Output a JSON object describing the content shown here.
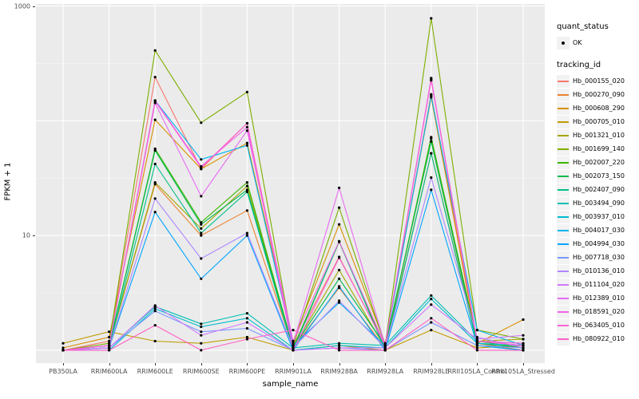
{
  "figure": {
    "y_axis": {
      "label": "FPKM + 1",
      "ticks": [
        {
          "value": 10,
          "label": "10"
        },
        {
          "value": 1000,
          "label": "1000"
        }
      ]
    },
    "x_axis": {
      "label": "sample_name"
    },
    "legend": {
      "quant_status_title": "quant_status",
      "quant_status_items": [
        "OK"
      ],
      "tracking_id_title": "tracking_id"
    },
    "colors": {
      "panel_bg": "#EBEBEB",
      "grid": "#FFFFFF",
      "point": "#000000",
      "axis_text": "#4D4D4D"
    }
  },
  "chart_data": {
    "type": "line",
    "title": "",
    "xlabel": "sample_name",
    "ylabel": "FPKM + 1",
    "y_scale": "log10",
    "ylim": [
      1,
      1000
    ],
    "y_tick_labels": [
      "10",
      "1000"
    ],
    "grid": "on",
    "legend_position": "right",
    "legend_titles": [
      "quant_status",
      "tracking_id"
    ],
    "quant_status": "OK",
    "x_categories": [
      "PB350LA",
      "RRIM600LA",
      "RRIM600LE",
      "RRIM600SE",
      "RRIM600PE",
      "RRIM901LA",
      "RRIM928BA",
      "RRIM928LA",
      "RRIM928LE",
      "RRII105LA_Control",
      "RRII105LA_Stressed"
    ],
    "series": [
      {
        "name": "Hb_000155_020",
        "color": "#F8766D",
        "values": [
          1.0,
          1.2,
          240,
          38,
          95,
          1.1,
          6.5,
          1.1,
          170,
          1.2,
          1.1
        ]
      },
      {
        "name": "Hb_000270_090",
        "color": "#EA8331",
        "values": [
          1.0,
          1.1,
          28,
          10,
          16.5,
          1.05,
          3.5,
          1.05,
          52,
          1.15,
          1.0
        ]
      },
      {
        "name": "Hb_000608_290",
        "color": "#D89000",
        "values": [
          1.05,
          1.3,
          102,
          38,
          64,
          1.2,
          12.5,
          1.15,
          160,
          1.15,
          1.85
        ]
      },
      {
        "name": "Hb_000705_010",
        "color": "#C09B00",
        "values": [
          1.15,
          1.45,
          1.2,
          1.15,
          1.3,
          1.0,
          1.1,
          1.0,
          1.5,
          1.05,
          1.1
        ]
      },
      {
        "name": "Hb_001321_010",
        "color": "#A3A500",
        "values": [
          1.0,
          1.1,
          29,
          11.5,
          27,
          1.05,
          5.0,
          1.05,
          70,
          1.2,
          1.25
        ]
      },
      {
        "name": "Hb_001699_140",
        "color": "#7CAE00",
        "values": [
          1.0,
          1.15,
          410,
          96,
          178,
          1.1,
          17.5,
          1.1,
          780,
          1.5,
          1.25
        ]
      },
      {
        "name": "Hb_002007_220",
        "color": "#39B600",
        "values": [
          1.0,
          1.1,
          57,
          13,
          29,
          1.05,
          8.8,
          1.05,
          72,
          1.2,
          1.05
        ]
      },
      {
        "name": "Hb_002073_150",
        "color": "#00BB4E",
        "values": [
          1.0,
          1.1,
          55,
          12.5,
          25,
          1.05,
          4.2,
          1.1,
          66,
          1.15,
          1.05
        ]
      },
      {
        "name": "Hb_002407_090",
        "color": "#00C087",
        "values": [
          1.0,
          1.05,
          42,
          10.5,
          24,
          1.0,
          8.9,
          1.0,
          52,
          1.1,
          1.0
        ]
      },
      {
        "name": "Hb_003494_090",
        "color": "#00C0B2",
        "values": [
          1.0,
          1.05,
          2.4,
          1.7,
          2.1,
          1.05,
          1.15,
          1.1,
          3.0,
          1.2,
          1.15
        ]
      },
      {
        "name": "Hb_003937_010",
        "color": "#00BDD0",
        "values": [
          1.0,
          1.0,
          2.3,
          1.6,
          1.9,
          1.0,
          1.1,
          1.05,
          2.8,
          1.15,
          1.1
        ]
      },
      {
        "name": "Hb_004017_030",
        "color": "#00B4EF",
        "values": [
          1.0,
          1.1,
          150,
          46,
          61,
          1.1,
          2.6,
          1.1,
          165,
          1.5,
          1.1
        ]
      },
      {
        "name": "Hb_004994_030",
        "color": "#00A5FF",
        "values": [
          1.0,
          1.05,
          16,
          4.2,
          10,
          1.0,
          3.6,
          1.0,
          25,
          1.1,
          1.0
        ]
      },
      {
        "name": "Hb_007718_030",
        "color": "#7997FF",
        "values": [
          1.0,
          1.05,
          2.2,
          1.45,
          1.55,
          1.0,
          1.05,
          1.0,
          1.75,
          1.1,
          1.05
        ]
      },
      {
        "name": "Hb_010136_010",
        "color": "#AE87FF",
        "values": [
          1.0,
          1.05,
          21,
          6.3,
          10.5,
          1.05,
          2.7,
          1.05,
          32,
          1.3,
          1.05
        ]
      },
      {
        "name": "Hb_011104_020",
        "color": "#CF78FF",
        "values": [
          1.0,
          1.05,
          2.45,
          1.35,
          1.75,
          1.0,
          1.05,
          1.05,
          2.5,
          1.25,
          1.35
        ]
      },
      {
        "name": "Hb_012389_010",
        "color": "#E76BF3",
        "values": [
          1.0,
          1.1,
          143,
          22,
          82,
          1.15,
          26,
          1.1,
          230,
          1.2,
          1.1
        ]
      },
      {
        "name": "Hb_018591_020",
        "color": "#F264E6",
        "values": [
          1.0,
          1.1,
          150,
          40,
          88,
          1.2,
          8.9,
          1.1,
          235,
          1.2,
          1.1
        ]
      },
      {
        "name": "Hb_063405_010",
        "color": "#FA61D7",
        "values": [
          1.0,
          1.1,
          148,
          39,
          95,
          1.0,
          6.4,
          1.1,
          225,
          1.2,
          1.15
        ]
      },
      {
        "name": "Hb_080922_010",
        "color": "#FF61C7",
        "values": [
          1.0,
          1.0,
          1.65,
          1.0,
          1.25,
          1.5,
          1.0,
          1.0,
          1.9,
          1.0,
          1.0
        ]
      }
    ]
  }
}
